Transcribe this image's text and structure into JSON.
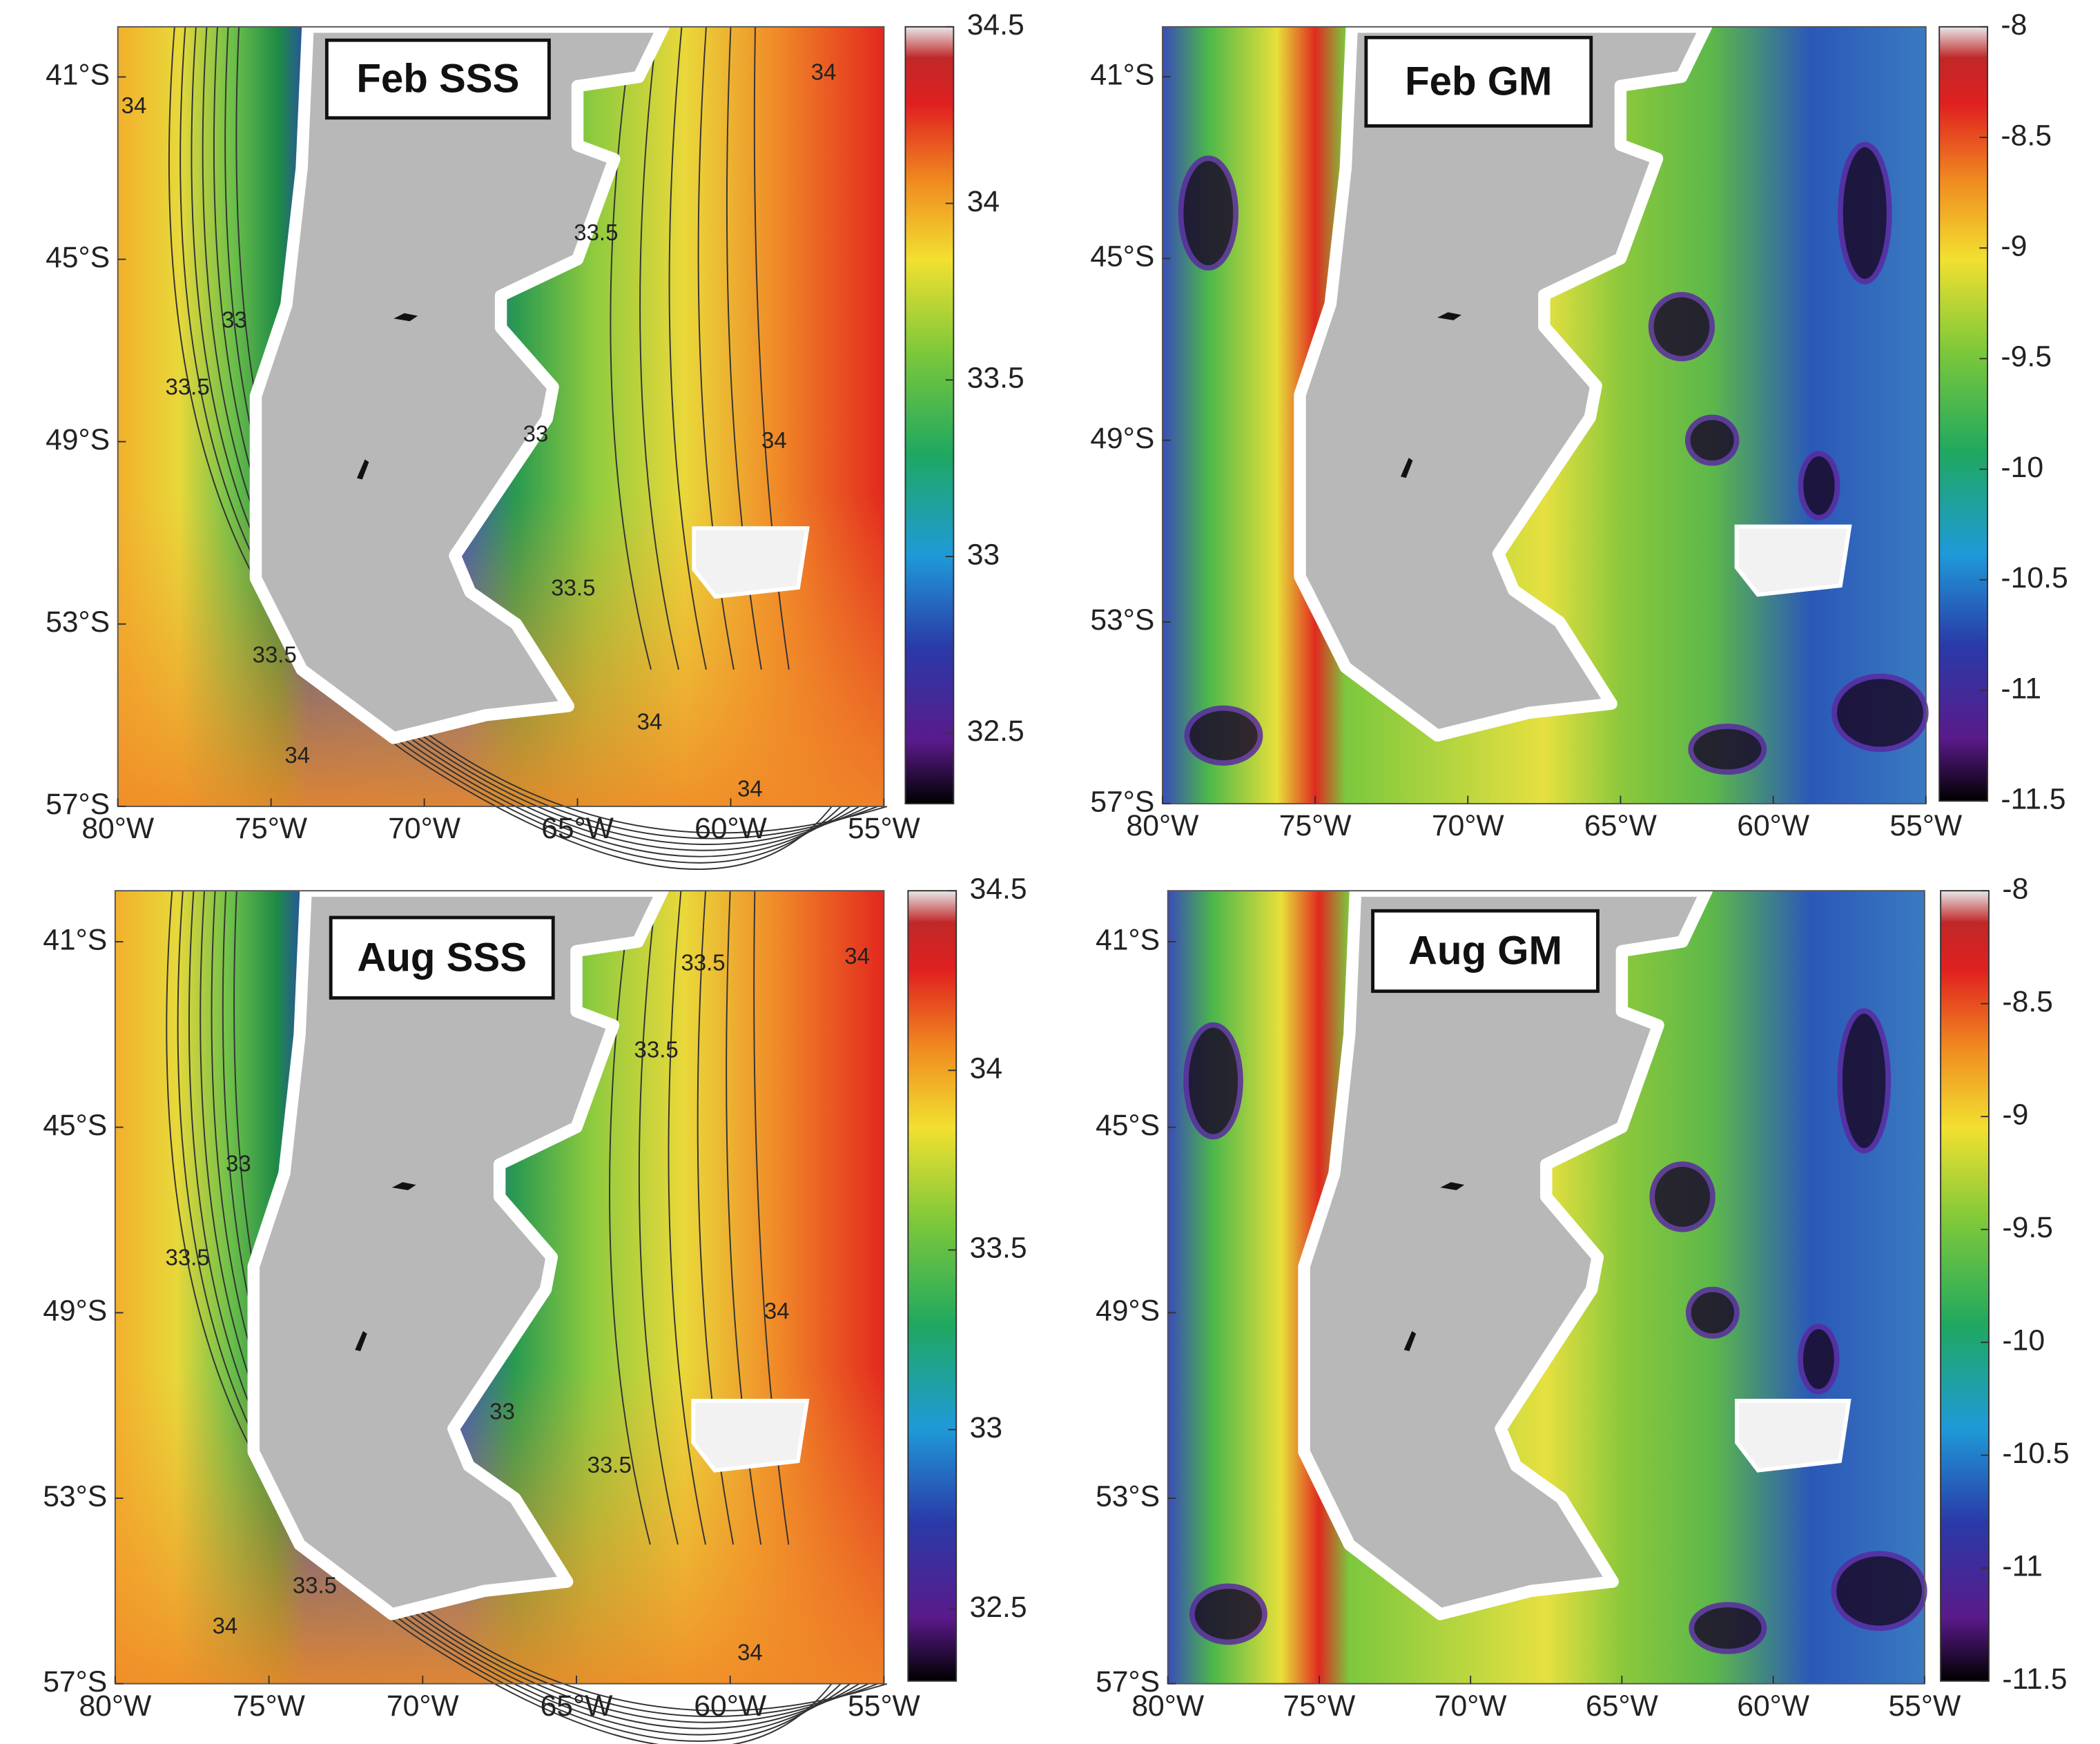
{
  "map_axes": {
    "xlim": [
      -80,
      -55
    ],
    "ylim": [
      -57,
      -39.9
    ],
    "xticks": [
      {
        "value": -80,
        "label": "80°W"
      },
      {
        "value": -75,
        "label": "75°W"
      },
      {
        "value": -70,
        "label": "70°W"
      },
      {
        "value": -65,
        "label": "65°W"
      },
      {
        "value": -60,
        "label": "60°W"
      },
      {
        "value": -55,
        "label": "55°W"
      }
    ],
    "yticks": [
      {
        "value": -41,
        "label": "41°S"
      },
      {
        "value": -45,
        "label": "45°S"
      },
      {
        "value": -49,
        "label": "49°S"
      },
      {
        "value": -53,
        "label": "53°S"
      },
      {
        "value": -57,
        "label": "57°S"
      }
    ]
  },
  "panels": [
    {
      "title": "Feb SSS",
      "colorbar": {
        "lim": [
          32.3,
          34.5
        ],
        "ticks": [
          32.5,
          33,
          33.5,
          34,
          34.5
        ]
      },
      "contour_labels": [
        34,
        34,
        33.5,
        33,
        33.5,
        33,
        34,
        33.5,
        33.5,
        34,
        34,
        34
      ]
    },
    {
      "title": "Feb GM",
      "colorbar": {
        "lim": [
          -11.5,
          -8
        ],
        "ticks": [
          -11.5,
          -11,
          -10.5,
          -10,
          -9.5,
          -9,
          -8.5,
          -8
        ]
      }
    },
    {
      "title": "Aug SSS",
      "colorbar": {
        "lim": [
          32.3,
          34.5
        ],
        "ticks": [
          32.5,
          33,
          33.5,
          34,
          34.5
        ]
      },
      "contour_labels": [
        33.5,
        34,
        33.5,
        33,
        33.5,
        34,
        33,
        33.5,
        33.5,
        34,
        34
      ]
    },
    {
      "title": "Aug GM",
      "colorbar": {
        "lim": [
          -11.5,
          -8
        ],
        "ticks": [
          -11.5,
          -11,
          -10.5,
          -10,
          -9.5,
          -9,
          -8.5,
          -8
        ]
      }
    }
  ]
}
